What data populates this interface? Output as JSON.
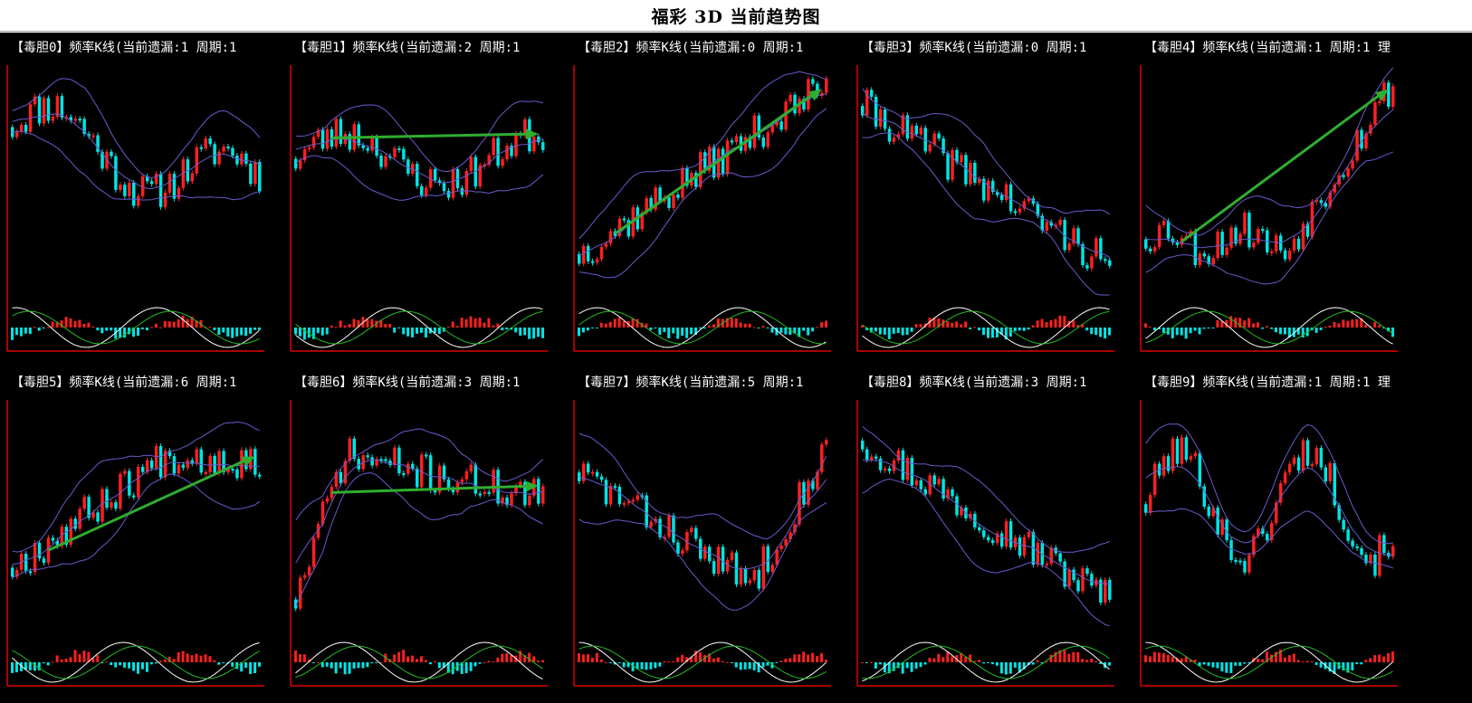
{
  "page": {
    "title": "福彩 3D 当前趋势图"
  },
  "colors": {
    "background": "#000000",
    "axis": "#e00000",
    "up_candle": "#ff2020",
    "down_candle": "#00e5e5",
    "band": "#6a5acd",
    "k_line": "#ffffff",
    "d_line": "#22bb22",
    "trend_arrow": "#2fae2f"
  },
  "chart_data": [
    {
      "type": "candlestick",
      "label": "【毒胆0】频率K线(当前遗漏:1 周期:1",
      "seed": 11,
      "trend": "flat-down",
      "arrow": false
    },
    {
      "type": "candlestick",
      "label": "【毒胆1】频率K线(当前遗漏:2 周期:1",
      "seed": 23,
      "trend": "flat",
      "arrow": true
    },
    {
      "type": "candlestick",
      "label": "【毒胆2】频率K线(当前遗漏:0 周期:1",
      "seed": 37,
      "trend": "up",
      "arrow": true
    },
    {
      "type": "candlestick",
      "label": "【毒胆3】频率K线(当前遗漏:0 周期:1",
      "seed": 41,
      "trend": "down",
      "arrow": false
    },
    {
      "type": "candlestick",
      "label": "【毒胆4】频率K线(当前遗漏:1 周期:1 理",
      "seed": 53,
      "trend": "late-up",
      "arrow": true
    },
    {
      "type": "candlestick",
      "label": "【毒胆5】频率K线(当前遗漏:6 周期:1",
      "seed": 67,
      "trend": "up-mid",
      "arrow": true
    },
    {
      "type": "candlestick",
      "label": "【毒胆6】频率K线(当前遗漏:3 周期:1",
      "seed": 71,
      "trend": "up-flat",
      "arrow": true
    },
    {
      "type": "candlestick",
      "label": "【毒胆7】频率K线(当前遗漏:5 周期:1",
      "seed": 83,
      "trend": "v",
      "arrow": false
    },
    {
      "type": "candlestick",
      "label": "【毒胆8】频率K线(当前遗漏:3 周期:1",
      "seed": 97,
      "trend": "down",
      "arrow": false
    },
    {
      "type": "candlestick",
      "label": "【毒胆9】频率K线(当前遗漏:1 周期:1 理",
      "seed": 101,
      "trend": "wave",
      "arrow": false
    }
  ]
}
